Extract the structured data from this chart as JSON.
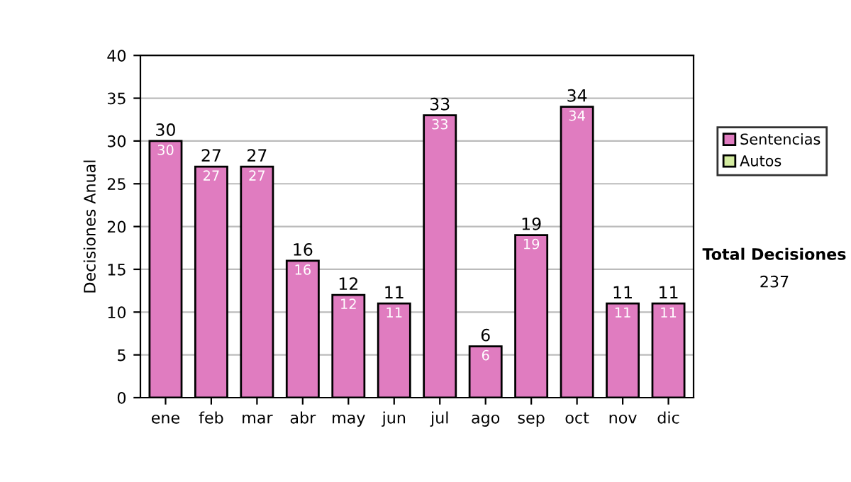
{
  "chart_data": {
    "type": "bar",
    "ylabel": "Decisiones Anual",
    "categories": [
      "ene",
      "feb",
      "mar",
      "abr",
      "may",
      "jun",
      "jul",
      "ago",
      "sep",
      "oct",
      "nov",
      "dic"
    ],
    "series": [
      {
        "name": "Sentencias",
        "color": "#e07cc0",
        "values": [
          30,
          27,
          27,
          16,
          12,
          11,
          33,
          6,
          19,
          34,
          11,
          11
        ],
        "value_labels": [
          "30",
          "27",
          "27",
          "16",
          "12",
          "11",
          "33",
          "6",
          "19",
          "34",
          "11",
          "11"
        ]
      },
      {
        "name": "Autos",
        "color": "#d4eca0",
        "values": [
          null,
          null,
          null,
          null,
          null,
          null,
          null,
          null,
          null,
          null,
          null,
          null
        ]
      }
    ],
    "stacked": true,
    "totals": [
      "30",
      "27",
      "27",
      "16",
      "12",
      "11",
      "33",
      "6",
      "19",
      "34",
      "11",
      "11"
    ],
    "ylim": [
      0,
      40
    ],
    "yticks": [
      0,
      5,
      10,
      15,
      20,
      25,
      30,
      35,
      40
    ],
    "grid": "y",
    "legend": "right",
    "annotations": [
      "Total Decisiones",
      "237"
    ]
  }
}
